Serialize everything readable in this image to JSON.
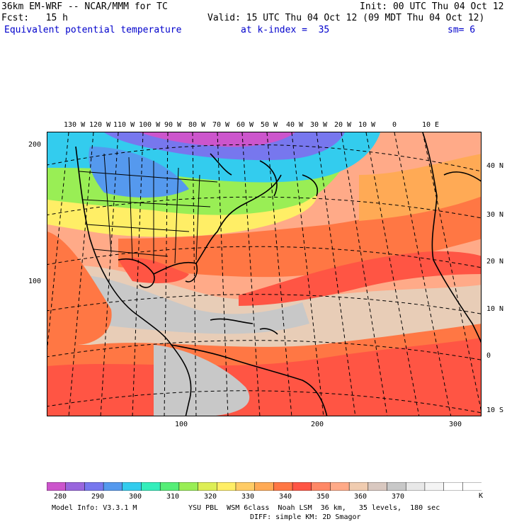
{
  "header": {
    "line1_left": "36km EM-WRF -- NCAR/MMM for TC",
    "line1_right": "Init: 00 UTC Thu 04 Oct 12",
    "line2_left": "Fcst:   15 h",
    "line2_right": "Valid: 15 UTC Thu 04 Oct 12 (09 MDT Thu 04 Oct 12)",
    "line3_field": "Equivalent potential temperature",
    "line3_level": "at k-index =  35",
    "line3_sm": "sm= 6"
  },
  "map": {
    "longitude_labels": [
      "130 W",
      "120 W",
      "110 W",
      "100 W",
      "90 W",
      "80 W",
      "70 W",
      "60 W",
      "50 W",
      "40 W",
      "30 W",
      "20 W",
      "10 W",
      "0",
      "10 E"
    ],
    "latitude_labels": [
      "40 N",
      "30 N",
      "20 N",
      "10 N",
      "0",
      "10 S"
    ],
    "grid_x_labels": [
      "100",
      "200",
      "300"
    ],
    "grid_y_labels": [
      "200",
      "100"
    ]
  },
  "colorbar": {
    "tick_labels": [
      "280",
      "290",
      "300",
      "310",
      "320",
      "330",
      "340",
      "350",
      "360",
      "370"
    ],
    "unit": "K",
    "colors": [
      "#cc55cc",
      "#9966dd",
      "#7777ee",
      "#5599ee",
      "#33ccee",
      "#33eebb",
      "#55ee77",
      "#99ee55",
      "#ddee55",
      "#ffee66",
      "#ffcc66",
      "#ffaa55",
      "#ff7744",
      "#ff5544",
      "#ff8866",
      "#ffaa88",
      "#f0ccb0",
      "#d9c8c0",
      "#c8c8c8",
      "#e8e8e8",
      "#f4f4f4",
      "#ffffff",
      "#ffffff"
    ]
  },
  "footer": {
    "line1_left": "Model Info: V3.3.1 M",
    "line1_right": "YSU PBL  WSM 6class  Noah LSM  36 km,   35 levels,  180 sec",
    "line2_right": "DIFF: simple KM: 2D Smagor"
  }
}
